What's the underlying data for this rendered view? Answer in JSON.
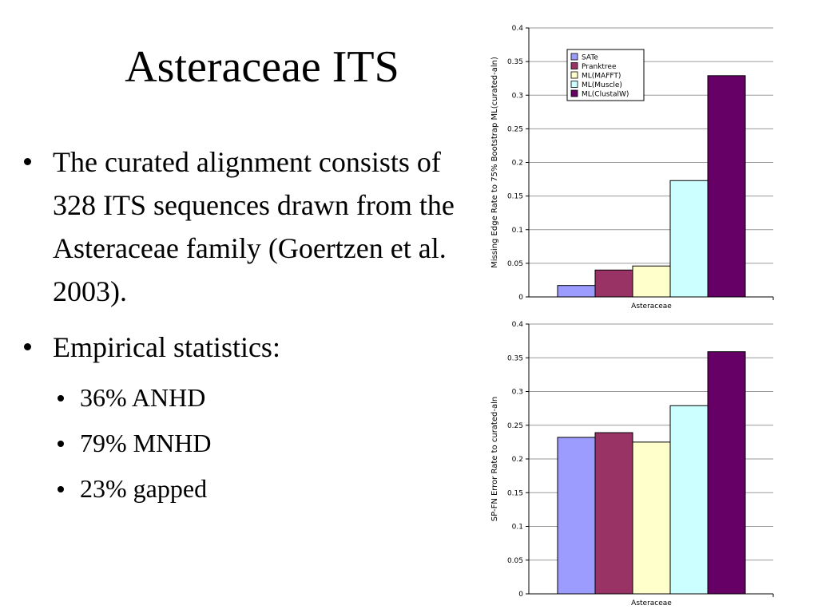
{
  "slide": {
    "title": "Asteraceae ITS",
    "bullets": [
      {
        "text": "The curated alignment consists of 328 ITS sequences drawn from the Asteraceae family (Goertzen et al. 2003)."
      },
      {
        "text": "Empirical statistics:",
        "sub": [
          "36% ANHD",
          "79% MNHD",
          "23% gapped"
        ]
      }
    ]
  },
  "chart_data": [
    {
      "type": "bar",
      "title": "",
      "xlabel": "",
      "ylabel": "Missing Edge Rate to 75% Bootstrap ML(curated-aln)",
      "categories": [
        "Asteraceae"
      ],
      "ylim": [
        0,
        0.4
      ],
      "yticks": [
        "0",
        "0.05",
        "0.1",
        "0.15",
        "0.2",
        "0.25",
        "0.3",
        "0.35",
        "0.4"
      ],
      "grid": true,
      "legend": "top-left",
      "series": [
        {
          "name": "SATe",
          "values": [
            0.017
          ],
          "color": "#9c9cff"
        },
        {
          "name": "Pranktree",
          "values": [
            0.04
          ],
          "color": "#993366"
        },
        {
          "name": "ML(MAFFT)",
          "values": [
            0.046
          ],
          "color": "#ffffcc"
        },
        {
          "name": "ML(Muscle)",
          "values": [
            0.173
          ],
          "color": "#ccffff"
        },
        {
          "name": "ML(ClustalW)",
          "values": [
            0.329
          ],
          "color": "#660066"
        }
      ]
    },
    {
      "type": "bar",
      "title": "",
      "xlabel": "",
      "ylabel": "SP-FN Error Rate to curated-aln",
      "categories": [
        "Asteraceae"
      ],
      "ylim": [
        0,
        0.4
      ],
      "yticks": [
        "0",
        "0.05",
        "0.1",
        "0.15",
        "0.2",
        "0.25",
        "0.3",
        "0.35",
        "0.4"
      ],
      "grid": true,
      "legend": "none",
      "series": [
        {
          "name": "SATe",
          "values": [
            0.232
          ],
          "color": "#9c9cff"
        },
        {
          "name": "Pranktree",
          "values": [
            0.239
          ],
          "color": "#993366"
        },
        {
          "name": "ML(MAFFT)",
          "values": [
            0.225
          ],
          "color": "#ffffcc"
        },
        {
          "name": "ML(Muscle)",
          "values": [
            0.279
          ],
          "color": "#ccffff"
        },
        {
          "name": "ML(ClustalW)",
          "values": [
            0.359
          ],
          "color": "#660066"
        }
      ]
    }
  ]
}
